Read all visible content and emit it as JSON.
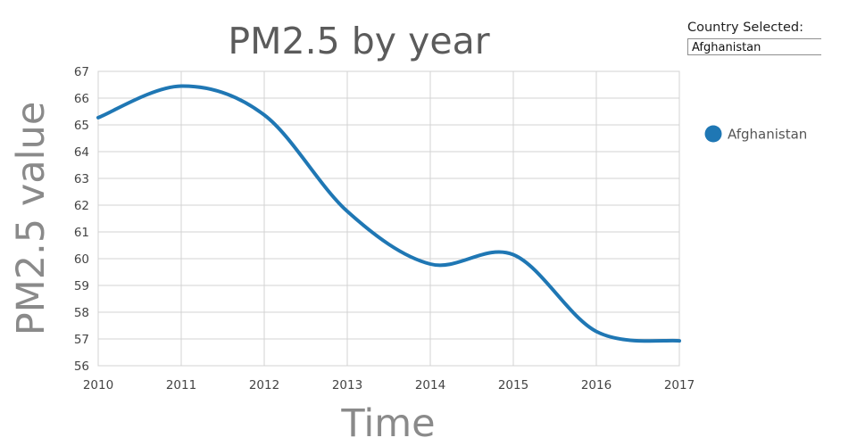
{
  "selector": {
    "label": "Country Selected:",
    "value": "Afghanistan"
  },
  "chart_data": {
    "type": "line",
    "title": "PM2.5 by year",
    "xlabel": "Time",
    "ylabel": "PM2.5 value",
    "x": [
      2010,
      2011,
      2012,
      2013,
      2014,
      2015,
      2016,
      2017
    ],
    "x_ticks": [
      "2010",
      "2011",
      "2012",
      "2013",
      "2014",
      "2015",
      "2016",
      "2017"
    ],
    "y_ticks": [
      "56",
      "57",
      "58",
      "59",
      "60",
      "61",
      "62",
      "63",
      "64",
      "65",
      "66",
      "67"
    ],
    "xlim": [
      2010,
      2017
    ],
    "ylim": [
      56,
      67
    ],
    "grid": true,
    "smoothed": true,
    "legend_position": "right",
    "series": [
      {
        "name": "Afghanistan",
        "color": "#1f77b4",
        "values": [
          65.27,
          66.45,
          65.37,
          61.77,
          59.8,
          60.15,
          57.28,
          56.93
        ]
      }
    ]
  }
}
